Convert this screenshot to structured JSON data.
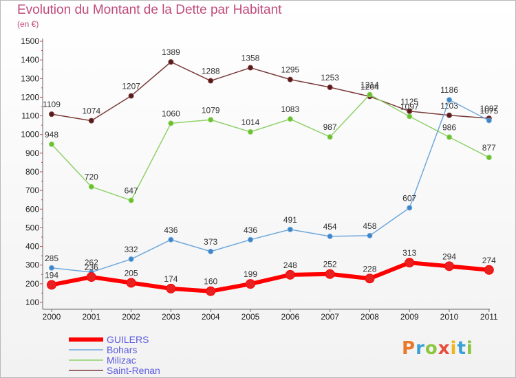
{
  "title": "Evolution du Montant de la Dette par Habitant",
  "subtitle": "(en €)",
  "logo": {
    "text": "Proxiti",
    "colors": [
      "#e8792a",
      "#3aa0d8",
      "#8cc63f",
      "#e84c3d",
      "#f2b51d",
      "#3aa0d8",
      "#8cc63f"
    ]
  },
  "chart_data": {
    "type": "line",
    "title": "Evolution du Montant de la Dette par Habitant",
    "ylabel": "(en €)",
    "xlabel": "",
    "x": [
      "2000",
      "2001",
      "2002",
      "2003",
      "2004",
      "2005",
      "2006",
      "2007",
      "2008",
      "2009",
      "2010",
      "2011"
    ],
    "ylim": [
      100,
      1500
    ],
    "yticks": [
      "100",
      "200",
      "300",
      "400",
      "500",
      "600",
      "700",
      "800",
      "900",
      "1000",
      "1100",
      "1200",
      "1300",
      "1400",
      "1500"
    ],
    "grid": "none",
    "legend_position": "bottom-left",
    "series": [
      {
        "name": "GUILERS",
        "color": "#ff0000",
        "marker": "#e82020",
        "values": [
          194,
          236,
          205,
          174,
          160,
          199,
          248,
          252,
          228,
          313,
          294,
          274
        ]
      },
      {
        "name": "Bohars",
        "color": "#6fa8dc",
        "marker": "#3d85c6",
        "values": [
          285,
          262,
          332,
          436,
          373,
          436,
          491,
          454,
          458,
          607,
          1186,
          1075
        ]
      },
      {
        "name": "Milizac",
        "color": "#8fd16a",
        "marker": "#6ac02a",
        "values": [
          948,
          720,
          647,
          1060,
          1079,
          1014,
          1083,
          987,
          1214,
          1097,
          986,
          877
        ]
      },
      {
        "name": "Saint-Renan",
        "color": "#7a3a3a",
        "marker": "#5a1a1a",
        "values": [
          1109,
          1074,
          1207,
          1389,
          1288,
          1358,
          1295,
          1253,
          1204,
          1125,
          1103,
          1087
        ]
      }
    ]
  }
}
